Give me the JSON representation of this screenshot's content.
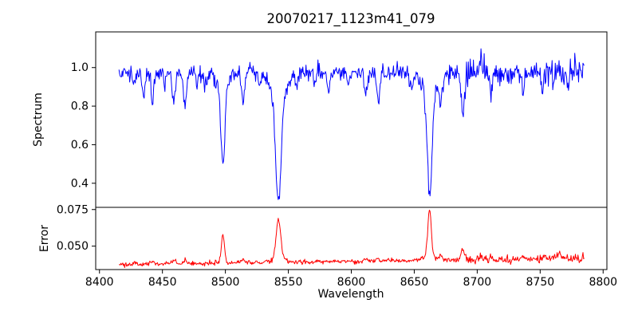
{
  "figure": {
    "title": "20070217_1123m41_079",
    "xlabel": "Wavelength",
    "ylabel_top": "Spectrum",
    "ylabel_bottom": "Error",
    "background_color": "#ffffff",
    "spine_color": "#000000"
  },
  "chart_data": {
    "type": "line",
    "title": "20070217_1123m41_079",
    "xlabel": "Wavelength",
    "xlim": [
      8397,
      8803
    ],
    "xticks": [
      {
        "value": 8400,
        "label": "8400"
      },
      {
        "value": 8450,
        "label": "8450"
      },
      {
        "value": 8500,
        "label": "8500"
      },
      {
        "value": 8550,
        "label": "8550"
      },
      {
        "value": 8600,
        "label": "8600"
      },
      {
        "value": 8650,
        "label": "8650"
      },
      {
        "value": 8700,
        "label": "8700"
      },
      {
        "value": 8750,
        "label": "8750"
      },
      {
        "value": 8800,
        "label": "8800"
      }
    ],
    "grid": false,
    "legend": "none",
    "x_range_of_data": [
      8415.5,
      8785.0
    ],
    "panels": [
      {
        "name": "spectrum",
        "ylabel": "Spectrum",
        "line_color": "#0000ff",
        "ylim": [
          0.275,
          1.185
        ],
        "yticks": [
          {
            "value": 0.4,
            "label": "0.4"
          },
          {
            "value": 0.6,
            "label": "0.6"
          },
          {
            "value": 0.8,
            "label": "0.8"
          },
          {
            "value": 1.0,
            "label": "1.0"
          }
        ],
        "description": "Noisy stellar spectrum, continuum near 1.0, with Ca II triplet absorption lines",
        "key_points": [
          {
            "x": 8498,
            "y_min": 0.47
          },
          {
            "x": 8542,
            "y_min": 0.31
          },
          {
            "x": 8662,
            "y_min": 0.33
          },
          {
            "x": 8688,
            "y_min": 0.74
          },
          {
            "x": 8703,
            "y_max": 1.13
          }
        ],
        "series": {
          "x_start": 8415.5,
          "x_step": 0.5,
          "n_steps": 739,
          "seed": 1337,
          "baseline": {
            "offset": 0.975,
            "slope": 0
          },
          "noise": {
            "sigma": 0.021,
            "regions": [
              {
                "from": 8690,
                "to": 8728,
                "mult": 1.9
              },
              {
                "from": 8750,
                "to": 8786,
                "mult": 1.45
              }
            ]
          },
          "gaussians": [
            [
              8428,
              -0.06,
              1.0
            ],
            [
              8435,
              -0.12,
              1.1
            ],
            [
              8442,
              -0.16,
              1.0
            ],
            [
              8452,
              -0.06,
              0.9
            ],
            [
              8459,
              -0.17,
              1.2
            ],
            [
              8468,
              -0.17,
              1.2
            ],
            [
              8477,
              -0.05,
              0.9
            ],
            [
              8484,
              -0.06,
              1.0
            ],
            [
              8498.02,
              -0.44,
              1.6
            ],
            [
              8498.02,
              -0.06,
              5.0
            ],
            [
              8514.1,
              -0.14,
              1.1
            ],
            [
              8527,
              -0.07,
              1.0
            ],
            [
              8542.09,
              -0.55,
              2.1
            ],
            [
              8542.09,
              -0.12,
              7.0
            ],
            [
              8556,
              -0.06,
              1.0
            ],
            [
              8571,
              -0.05,
              1.0
            ],
            [
              8582,
              -0.1,
              1.1
            ],
            [
              8598,
              -0.06,
              1.0
            ],
            [
              8611,
              -0.13,
              1.1
            ],
            [
              8621.6,
              -0.15,
              1.2
            ],
            [
              8648,
              -0.07,
              1.3
            ],
            [
              8662.14,
              -0.53,
              1.9
            ],
            [
              8662.14,
              -0.11,
              6.0
            ],
            [
              8671,
              -0.15,
              1.0
            ],
            [
              8688.6,
              -0.22,
              1.4
            ],
            [
              8697,
              0.05,
              0.6
            ],
            [
              8703,
              0.1,
              0.8
            ],
            [
              8711,
              -0.12,
              1.0
            ],
            [
              8736,
              -0.09,
              1.2
            ],
            [
              8752,
              -0.09,
              1.0
            ],
            [
              8772,
              -0.07,
              1.0
            ]
          ]
        }
      },
      {
        "name": "error",
        "ylabel": "Error",
        "line_color": "#ff0000",
        "ylim": [
          0.034,
          0.0765
        ],
        "yticks": [
          {
            "value": 0.05,
            "label": "0.050"
          },
          {
            "value": 0.075,
            "label": "0.075"
          }
        ],
        "description": "Error spectrum, baseline near 0.038-0.041 with peaks at the absorption line cores",
        "key_points": [
          {
            "x": 8498,
            "y_max": 0.058
          },
          {
            "x": 8542,
            "y_max": 0.069
          },
          {
            "x": 8662,
            "y_max": 0.074
          }
        ],
        "series": {
          "x_start": 8415.5,
          "x_step": 0.5,
          "n_steps": 739,
          "seed": 2024,
          "baseline": {
            "offset": 0.0376,
            "slope": 1.08e-05
          },
          "noise": {
            "sigma": 0.0008,
            "regions": [
              {
                "from": 8690,
                "to": 8728,
                "mult": 1.5
              },
              {
                "from": 8748,
                "to": 8786,
                "mult": 1.8
              }
            ]
          },
          "gaussians": [
            [
              8428,
              0.0015,
              1.2
            ],
            [
              8442,
              0.002,
              1.2
            ],
            [
              8459,
              0.002,
              1.2
            ],
            [
              8468,
              0.002,
              1.2
            ],
            [
              8498.02,
              0.019,
              1.3
            ],
            [
              8514,
              0.002,
              1.0
            ],
            [
              8542.09,
              0.027,
              1.7
            ],
            [
              8542.09,
              0.003,
              5.0
            ],
            [
              8611,
              0.0015,
              1.0
            ],
            [
              8621,
              0.002,
              1.0
            ],
            [
              8662.14,
              0.031,
              1.4
            ],
            [
              8662.14,
              0.003,
              5.0
            ],
            [
              8671,
              0.003,
              1.0
            ],
            [
              8688.6,
              0.0065,
              1.5
            ],
            [
              8703,
              0.003,
              1.0
            ],
            [
              8711,
              0.003,
              1.0
            ],
            [
              8736,
              0.002,
              1.2
            ],
            [
              8766,
              0.003,
              2.5
            ]
          ]
        }
      }
    ]
  }
}
